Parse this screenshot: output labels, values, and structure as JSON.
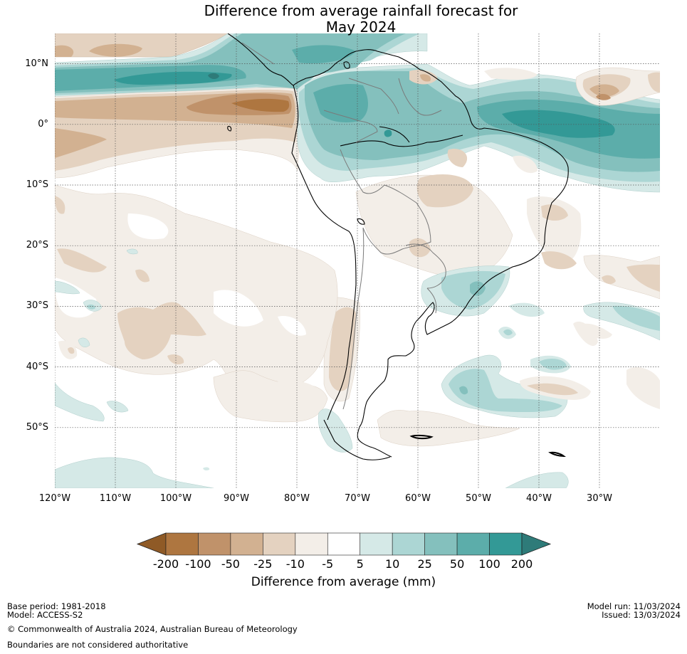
{
  "title": {
    "line1": "Difference from average rainfall forecast for",
    "line2": "May 2024"
  },
  "map": {
    "region": "South America",
    "extent": {
      "lon_min": -120,
      "lon_max": -20,
      "lat_min": -60,
      "lat_max": 15
    },
    "lat_labels": [
      {
        "lat": 10,
        "text": "10°N"
      },
      {
        "lat": 0,
        "text": "0°"
      },
      {
        "lat": -10,
        "text": "10°S"
      },
      {
        "lat": -20,
        "text": "20°S"
      },
      {
        "lat": -30,
        "text": "30°S"
      },
      {
        "lat": -40,
        "text": "40°S"
      },
      {
        "lat": -50,
        "text": "50°S"
      }
    ],
    "lon_labels": [
      {
        "lon": -120,
        "text": "120°W"
      },
      {
        "lon": -110,
        "text": "110°W"
      },
      {
        "lon": -100,
        "text": "100°W"
      },
      {
        "lon": -90,
        "text": "90°W"
      },
      {
        "lon": -80,
        "text": "80°W"
      },
      {
        "lon": -70,
        "text": "70°W"
      },
      {
        "lon": -60,
        "text": "60°W"
      },
      {
        "lon": -50,
        "text": "50°W"
      },
      {
        "lon": -40,
        "text": "40°W"
      },
      {
        "lon": -30,
        "text": "30°W"
      }
    ],
    "gridlines": true
  },
  "colorbar": {
    "label": "Difference from average (mm)",
    "ticks": [
      "-200",
      "-100",
      "-50",
      "-25",
      "-10",
      "-5",
      "5",
      "10",
      "25",
      "50",
      "100",
      "200"
    ],
    "extend_low_color": "#8f5a26",
    "extend_high_color": "#2e7b79",
    "bin_colors": [
      "#ae7640",
      "#c0926a",
      "#d2b191",
      "#e4d2c0",
      "#f3eee8",
      "#ffffff",
      "#d5e9e7",
      "#acd6d4",
      "#84c0bd",
      "#5cadaa",
      "#339996"
    ]
  },
  "footer": {
    "base_period": "Base period: 1981-2018",
    "model": "Model: ACCESS-S2",
    "model_run": "Model run: 11/03/2024",
    "issued": "Issued: 13/03/2024",
    "copyright": "© Commonwealth of Australia 2024, Australian Bureau of Meteorology",
    "disclaimer": "Boundaries are not considered authoritative"
  }
}
